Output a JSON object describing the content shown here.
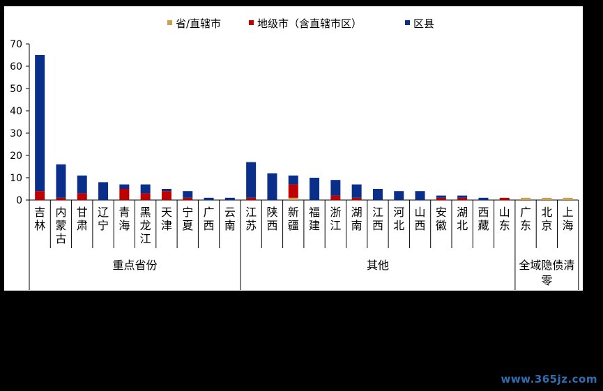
{
  "chart_data": {
    "type": "bar",
    "stacked": true,
    "title": "",
    "xlabel": "",
    "ylabel": "",
    "ylim": [
      0,
      70
    ],
    "yticks": [
      0,
      10,
      20,
      30,
      40,
      50,
      60,
      70
    ],
    "grid": false,
    "legend_position": "top",
    "categories": [
      "吉林",
      "内蒙古",
      "甘肃",
      "辽宁",
      "青海",
      "黑龙江",
      "天津",
      "宁夏",
      "广西",
      "云南",
      "江苏",
      "陕西",
      "新疆",
      "福建",
      "浙江",
      "湖南",
      "江西",
      "河北",
      "山西",
      "安徽",
      "湖北",
      "西藏",
      "山东",
      "广东",
      "北京",
      "上海"
    ],
    "groups": [
      {
        "label": "重点省份",
        "count": 10
      },
      {
        "label": "其他",
        "count": 13
      },
      {
        "label": "全域隐债清零",
        "count": 3
      }
    ],
    "series": [
      {
        "name": "省/直辖市",
        "color": "#c9a050",
        "values": [
          0,
          0,
          0,
          0,
          0,
          0,
          0,
          0,
          0,
          0,
          0,
          0,
          1,
          0,
          0,
          0,
          0,
          0,
          0,
          0,
          0,
          0,
          0,
          1,
          1,
          1
        ]
      },
      {
        "name": "地级市（含直辖市区）",
        "color": "#c00000",
        "values": [
          4,
          1,
          3,
          0,
          5,
          3,
          4,
          1,
          0,
          0,
          1,
          0,
          6,
          0,
          2,
          1,
          0,
          0,
          0,
          1,
          1,
          0,
          1,
          0,
          0,
          0
        ]
      },
      {
        "name": "区县",
        "color": "#0a2f8a",
        "values": [
          61,
          15,
          8,
          8,
          2,
          4,
          1,
          3,
          1,
          1,
          16,
          12,
          4,
          10,
          7,
          6,
          5,
          4,
          4,
          1,
          1,
          1,
          0,
          0,
          0,
          0
        ]
      }
    ]
  },
  "watermark": "www.365jz.com"
}
